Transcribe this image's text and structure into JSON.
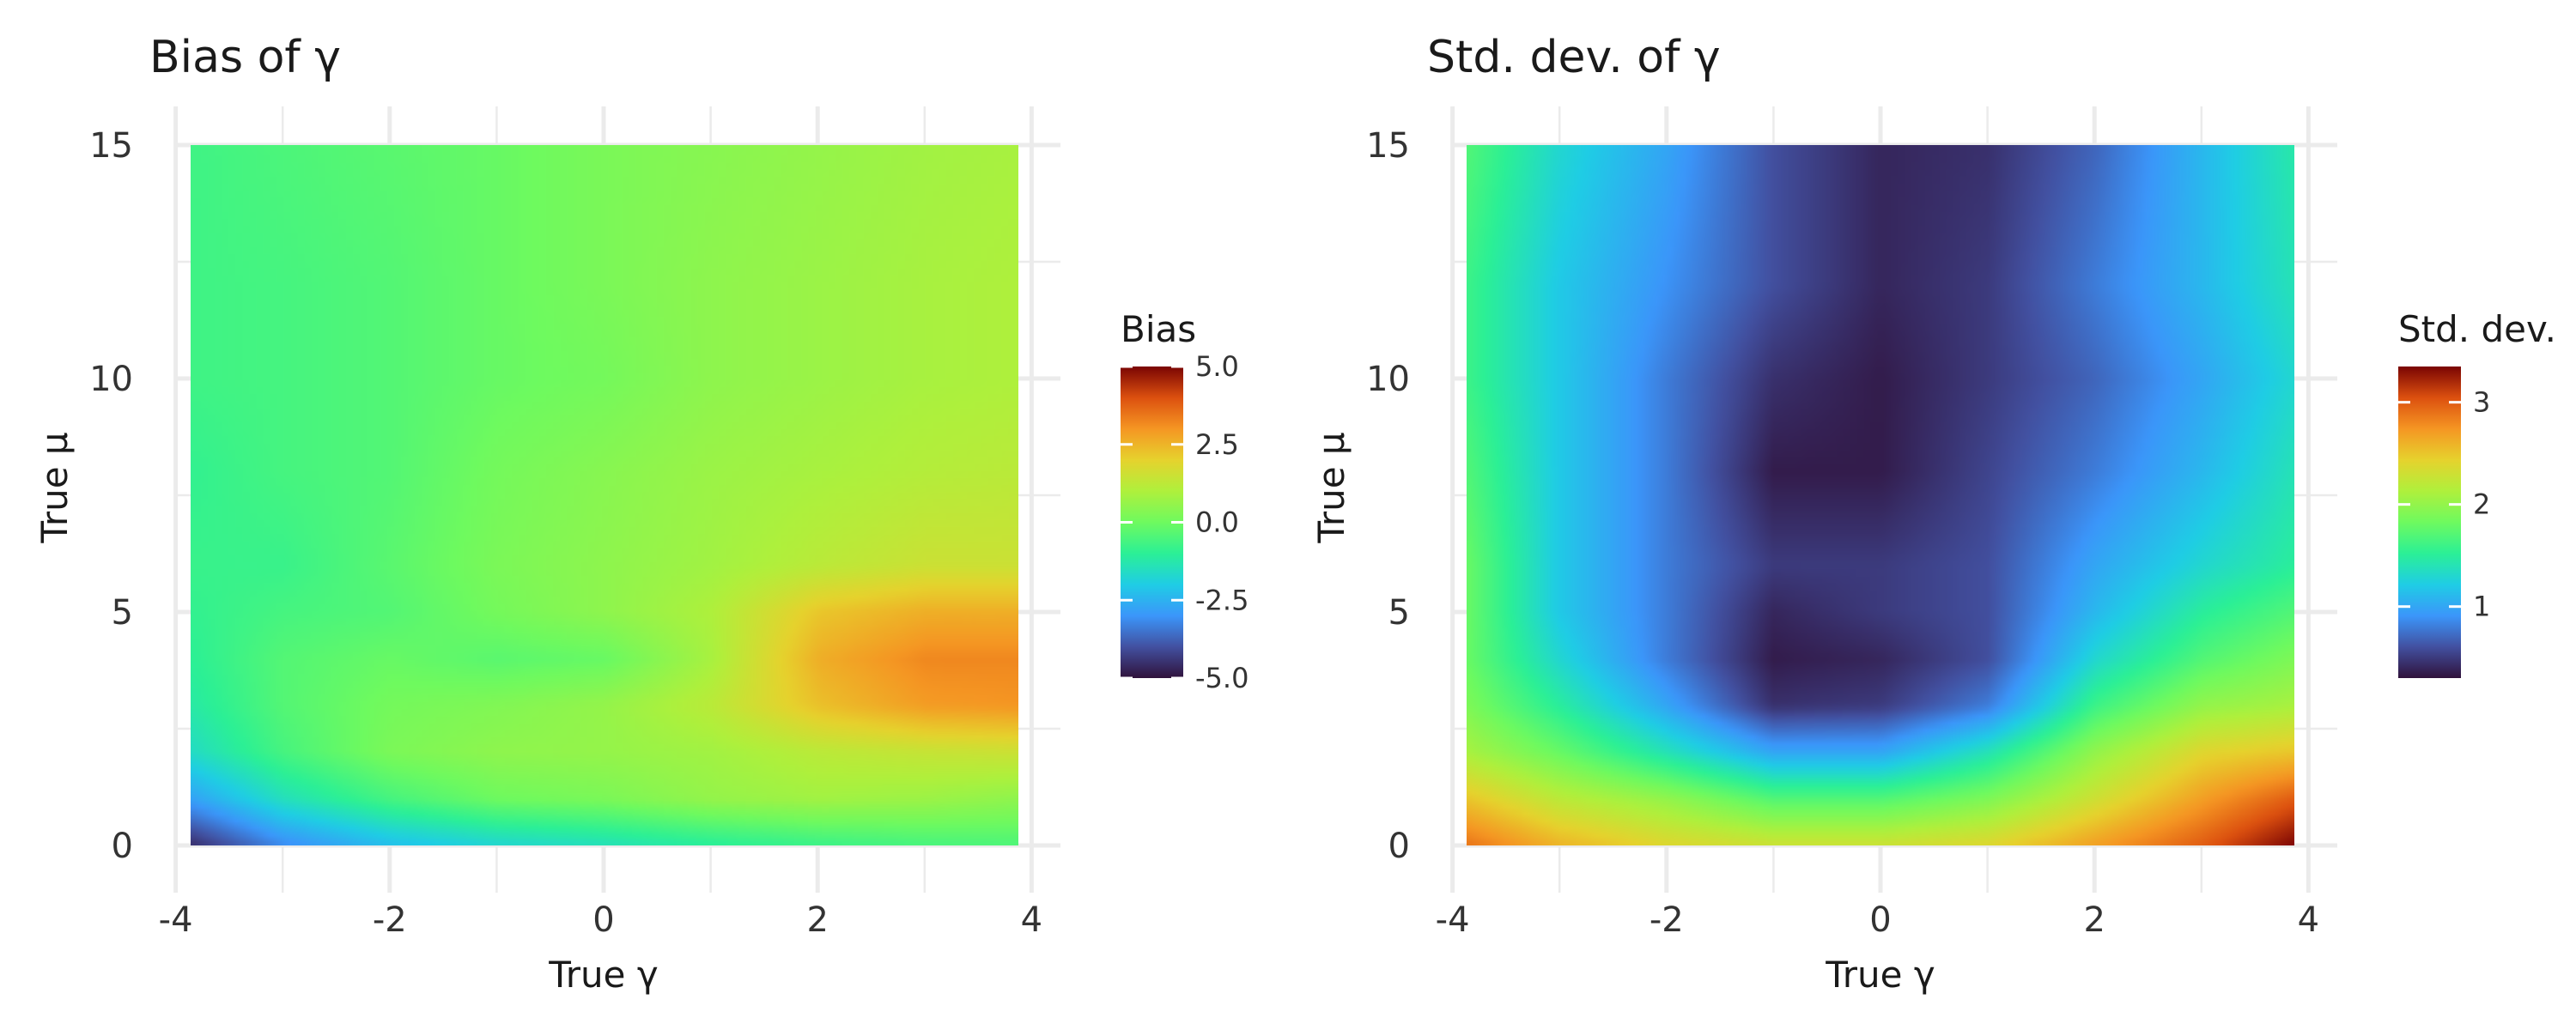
{
  "chart_data": [
    {
      "type": "heatmap",
      "title": "Bias of γ",
      "xlabel": "True γ",
      "ylabel": "True μ",
      "xlim": [
        -3.85,
        3.85
      ],
      "ylim": [
        0,
        15
      ],
      "xticks": [
        -4,
        -2,
        0,
        2,
        4
      ],
      "yticks": [
        0,
        5,
        10,
        15
      ],
      "grid": true,
      "legend": {
        "title": "Bias",
        "position": "right",
        "range": [
          -5,
          5
        ],
        "ticks": [
          5.0,
          2.5,
          0.0,
          -2.5,
          -5.0
        ],
        "tick_labels": [
          "5.0",
          "2.5",
          "0.0",
          "-2.5",
          "-5.0"
        ]
      },
      "colorscale": "turbo",
      "x": [
        -3.85,
        -3,
        -2,
        -1,
        0,
        1,
        2,
        3,
        3.85
      ],
      "y": [
        0,
        1,
        2,
        3,
        4,
        5,
        6,
        8,
        10,
        12,
        15
      ],
      "z": [
        [
          -4.6,
          -3.2,
          -2.3,
          -1.8,
          -1.5,
          -1.1,
          -0.8,
          -0.6,
          -0.5
        ],
        [
          -2.8,
          -1.5,
          -0.6,
          0.0,
          0.2,
          0.6,
          0.8,
          0.7,
          0.5
        ],
        [
          -1.6,
          -0.6,
          0.2,
          0.5,
          0.6,
          0.8,
          1.2,
          1.4,
          1.5
        ],
        [
          -1.2,
          -0.4,
          0.1,
          0.3,
          0.6,
          1.2,
          2.3,
          2.9,
          3.0
        ],
        [
          -1.0,
          -0.4,
          -0.1,
          -0.3,
          -0.1,
          0.9,
          2.6,
          3.2,
          3.2
        ],
        [
          -0.9,
          -0.6,
          -0.4,
          0.1,
          0.5,
          1.0,
          2.2,
          2.6,
          2.6
        ],
        [
          -0.8,
          -0.8,
          -0.3,
          0.2,
          0.5,
          0.8,
          1.2,
          1.5,
          1.5
        ],
        [
          -0.9,
          -0.6,
          -0.4,
          0.1,
          0.4,
          0.7,
          0.9,
          1.1,
          1.2
        ],
        [
          -0.7,
          -0.6,
          -0.4,
          -0.1,
          0.1,
          0.5,
          0.7,
          0.9,
          1.0
        ],
        [
          -0.7,
          -0.6,
          -0.4,
          -0.1,
          0.2,
          0.5,
          0.7,
          0.9,
          1.0
        ],
        [
          -0.7,
          -0.5,
          -0.3,
          -0.1,
          0.2,
          0.4,
          0.6,
          0.8,
          0.9
        ]
      ]
    },
    {
      "type": "heatmap",
      "title": "Std. dev. of γ",
      "xlabel": "True γ",
      "ylabel": "True μ",
      "xlim": [
        -3.85,
        3.85
      ],
      "ylim": [
        0,
        15
      ],
      "xticks": [
        -4,
        -2,
        0,
        2,
        4
      ],
      "yticks": [
        0,
        5,
        10,
        15
      ],
      "grid": true,
      "legend": {
        "title": "Std. dev.",
        "position": "right",
        "range": [
          0.3,
          3.35
        ],
        "ticks": [
          3,
          2,
          1
        ],
        "tick_labels": [
          "3",
          "2",
          "1"
        ]
      },
      "colorscale": "turbo",
      "x": [
        -3.85,
        -3,
        -2,
        -1,
        0,
        1,
        2,
        3,
        3.85
      ],
      "y": [
        0,
        1,
        2,
        3,
        4,
        5,
        6,
        8,
        10,
        12,
        15
      ],
      "z": [
        [
          2.9,
          2.6,
          2.4,
          2.3,
          2.3,
          2.4,
          2.7,
          3.0,
          3.35
        ],
        [
          2.5,
          2.2,
          2.0,
          1.7,
          1.7,
          1.9,
          2.3,
          2.7,
          3.0
        ],
        [
          2.1,
          1.8,
          1.4,
          1.0,
          1.0,
          1.4,
          2.0,
          2.4,
          2.5
        ],
        [
          1.9,
          1.5,
          1.0,
          0.45,
          0.5,
          0.8,
          1.6,
          2.0,
          2.1
        ],
        [
          1.8,
          1.3,
          0.8,
          0.35,
          0.4,
          0.6,
          1.3,
          1.7,
          1.9
        ],
        [
          1.8,
          1.2,
          0.8,
          0.4,
          0.5,
          0.6,
          1.1,
          1.5,
          1.7
        ],
        [
          1.8,
          1.2,
          0.8,
          0.5,
          0.5,
          0.6,
          1.0,
          1.3,
          1.5
        ],
        [
          1.7,
          1.2,
          0.8,
          0.35,
          0.35,
          0.55,
          0.8,
          1.1,
          1.4
        ],
        [
          1.6,
          1.2,
          0.8,
          0.45,
          0.35,
          0.5,
          0.7,
          1.0,
          1.3
        ],
        [
          1.6,
          1.2,
          0.9,
          0.6,
          0.4,
          0.5,
          0.8,
          1.1,
          1.4
        ],
        [
          1.7,
          1.3,
          1.0,
          0.6,
          0.4,
          0.45,
          0.7,
          1.1,
          1.45
        ]
      ]
    }
  ]
}
